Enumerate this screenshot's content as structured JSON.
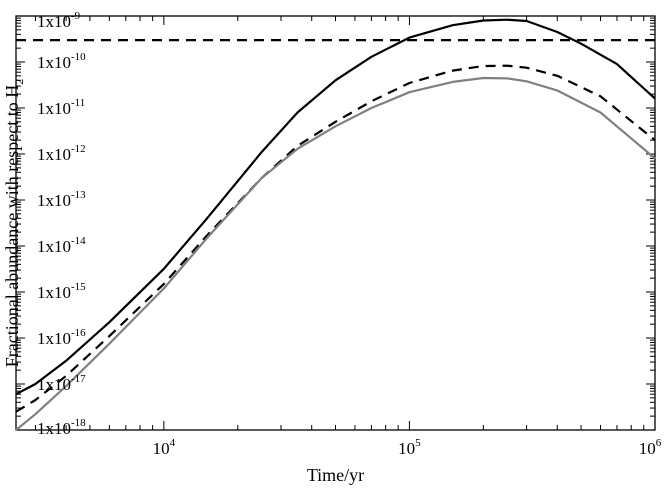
{
  "chart_data": {
    "type": "line",
    "xlabel": "Time/yr",
    "ylabel": "Fractional abundance with respect to H",
    "ylabel_subscript": "2",
    "x_scale": "log",
    "y_scale": "log",
    "xlim": [
      2500,
      1000000
    ],
    "ylim": [
      1e-18,
      1e-09
    ],
    "grid": false,
    "x_ticks": [
      {
        "value": 10000,
        "base": "10",
        "exp": "4"
      },
      {
        "value": 100000,
        "base": "10",
        "exp": "5"
      },
      {
        "value": 1000000,
        "base": "10",
        "exp": "6"
      }
    ],
    "y_ticks": [
      {
        "value": 1e-09,
        "base": "1x10",
        "exp": "-9"
      },
      {
        "value": 1e-10,
        "base": "1x10",
        "exp": "-10"
      },
      {
        "value": 1e-11,
        "base": "1x10",
        "exp": "-11"
      },
      {
        "value": 1e-12,
        "base": "1x10",
        "exp": "-12"
      },
      {
        "value": 1e-13,
        "base": "1x10",
        "exp": "-13"
      },
      {
        "value": 1e-14,
        "base": "1x10",
        "exp": "-14"
      },
      {
        "value": 1e-15,
        "base": "1x10",
        "exp": "-15"
      },
      {
        "value": 1e-16,
        "base": "1x10",
        "exp": "-16"
      },
      {
        "value": 1e-17,
        "base": "1x10",
        "exp": "-17"
      },
      {
        "value": 1e-18,
        "base": "1x10",
        "exp": "-18"
      }
    ],
    "series": [
      {
        "style": "solid",
        "color": "#000000",
        "points": [
          [
            2500,
            6e-18
          ],
          [
            3000,
            1e-17
          ],
          [
            4000,
            3.2e-17
          ],
          [
            6000,
            2.2e-16
          ],
          [
            10000,
            3.2e-15
          ],
          [
            15000,
            4e-14
          ],
          [
            25000,
            1.1e-12
          ],
          [
            35000,
            8e-12
          ],
          [
            50000,
            4e-11
          ],
          [
            70000,
            1.3e-10
          ],
          [
            100000,
            3.4e-10
          ],
          [
            150000,
            6.3e-10
          ],
          [
            200000,
            8e-10
          ],
          [
            250000,
            8.3e-10
          ],
          [
            300000,
            7.8e-10
          ],
          [
            400000,
            4.5e-10
          ],
          [
            500000,
            2.5e-10
          ],
          [
            700000,
            9e-11
          ],
          [
            1000000,
            1.6e-11
          ]
        ]
      },
      {
        "style": "dashed",
        "color": "#000000",
        "points": [
          [
            2500,
            2.5e-18
          ],
          [
            3000,
            4.5e-18
          ],
          [
            4000,
            1.5e-17
          ],
          [
            6000,
            1.1e-16
          ],
          [
            10000,
            1.5e-15
          ],
          [
            15000,
            1.7e-14
          ],
          [
            25000,
            3e-13
          ],
          [
            35000,
            1.5e-12
          ],
          [
            50000,
            5e-12
          ],
          [
            70000,
            1.4e-11
          ],
          [
            100000,
            3.5e-11
          ],
          [
            150000,
            6.5e-11
          ],
          [
            200000,
            8.2e-11
          ],
          [
            250000,
            8.3e-11
          ],
          [
            300000,
            7.5e-11
          ],
          [
            400000,
            5e-11
          ],
          [
            600000,
            1.8e-11
          ],
          [
            1000000,
            2e-12
          ]
        ]
      },
      {
        "style": "solid",
        "color": "#808080",
        "points": [
          [
            2500,
            1e-18
          ],
          [
            3000,
            2.2e-18
          ],
          [
            4000,
            9e-18
          ],
          [
            6000,
            7.5e-17
          ],
          [
            10000,
            1.2e-15
          ],
          [
            15000,
            1.5e-14
          ],
          [
            25000,
            3e-13
          ],
          [
            35000,
            1.3e-12
          ],
          [
            50000,
            4e-12
          ],
          [
            70000,
            1e-11
          ],
          [
            100000,
            2.2e-11
          ],
          [
            150000,
            3.7e-11
          ],
          [
            200000,
            4.5e-11
          ],
          [
            250000,
            4.4e-11
          ],
          [
            300000,
            3.8e-11
          ],
          [
            400000,
            2.4e-11
          ],
          [
            600000,
            8e-12
          ],
          [
            1000000,
            8e-13
          ]
        ]
      },
      {
        "style": "dashed",
        "color": "#000000",
        "points": [
          [
            2500,
            3e-10
          ],
          [
            1000000,
            3e-10
          ]
        ]
      }
    ]
  }
}
